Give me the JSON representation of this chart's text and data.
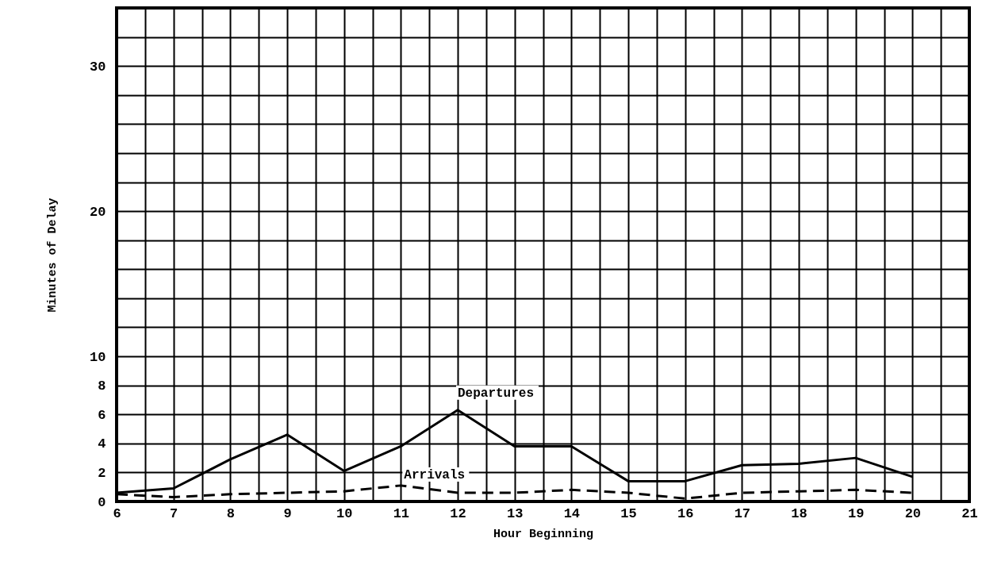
{
  "chart_data": {
    "type": "line",
    "xlabel": "Hour Beginning",
    "ylabel": "Minutes of Delay",
    "x": [
      6,
      7,
      8,
      9,
      10,
      11,
      12,
      13,
      14,
      15,
      16,
      17,
      18,
      19,
      20
    ],
    "series": [
      {
        "name": "Departures",
        "color": "#000000",
        "line_style": "solid",
        "values": [
          0.6,
          0.9,
          2.9,
          4.6,
          2.1,
          3.8,
          6.3,
          3.8,
          3.8,
          1.4,
          1.4,
          2.5,
          2.6,
          3.0,
          1.7
        ]
      },
      {
        "name": "Arrivals",
        "color": "#000000",
        "line_style": "dashed",
        "values": [
          0.5,
          0.3,
          0.5,
          0.6,
          0.7,
          1.1,
          0.6,
          0.6,
          0.8,
          0.6,
          0.2,
          0.6,
          0.7,
          0.8,
          0.6
        ]
      }
    ],
    "xlim": [
      6,
      21
    ],
    "xticks": [
      6,
      {
        "value": 6.5,
        "label": null
      },
      7,
      {
        "value": 7.5,
        "label": null
      },
      8,
      {
        "value": 8.5,
        "label": null
      },
      9,
      {
        "value": 9.5,
        "label": null
      },
      10,
      {
        "value": 10.5,
        "label": null
      },
      11,
      {
        "value": 11.5,
        "label": null
      },
      12,
      {
        "value": 12.5,
        "label": null
      },
      13,
      {
        "value": 13.5,
        "label": null
      },
      14,
      {
        "value": 14.5,
        "label": null
      },
      15,
      {
        "value": 15.5,
        "label": null
      },
      16,
      {
        "value": 16.5,
        "label": null
      },
      17,
      {
        "value": 17.5,
        "label": null
      },
      18,
      {
        "value": 18.5,
        "label": null
      },
      19,
      {
        "value": 19.5,
        "label": null
      },
      20,
      {
        "value": 20.5,
        "label": null
      },
      21
    ],
    "ylim": [
      0,
      34
    ],
    "yticks": [
      0,
      2,
      4,
      6,
      8,
      10,
      {
        "value": 12,
        "label": null
      },
      {
        "value": 14,
        "label": null
      },
      {
        "value": 16,
        "label": null
      },
      {
        "value": 18,
        "label": null
      },
      20,
      {
        "value": 22,
        "label": null
      },
      {
        "value": 24,
        "label": null
      },
      {
        "value": 26,
        "label": null
      },
      {
        "value": 28,
        "label": null
      },
      30,
      {
        "value": 32,
        "label": null
      }
    ],
    "grid": true,
    "marker": "none"
  }
}
